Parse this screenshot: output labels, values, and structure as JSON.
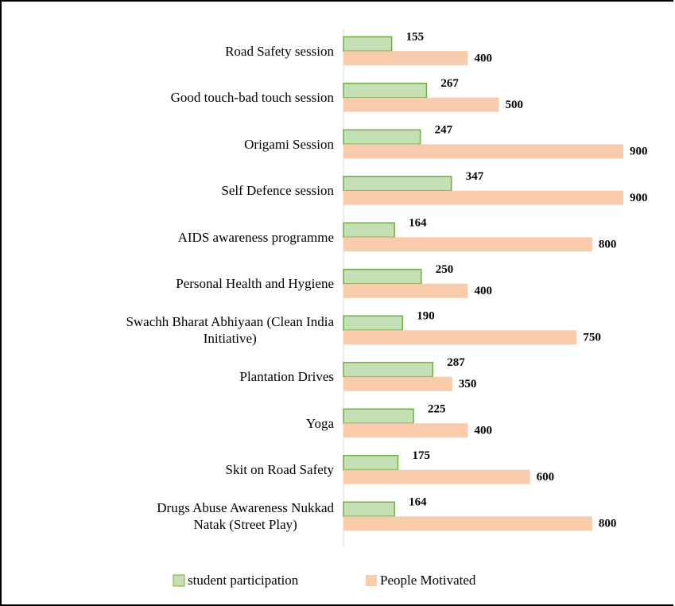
{
  "chart_data": {
    "type": "bar",
    "orientation": "horizontal",
    "categories": [
      "Road Safety session",
      "Good touch-bad touch session",
      "Origami Session",
      "Self Defence session",
      "AIDS awareness programme",
      "Personal Health and Hygiene",
      "Swachh Bharat Abhiyaan (Clean India\nInitiative)",
      "Plantation Drives",
      "Yoga",
      "Skit on Road Safety",
      "Drugs Abuse Awareness Nukkad\nNatak (Street Play)"
    ],
    "series": [
      {
        "name": "student participation",
        "color": "#c5e0b4",
        "stroke": "#70ad47",
        "values": [
          155,
          267,
          247,
          347,
          164,
          250,
          190,
          287,
          225,
          175,
          164
        ]
      },
      {
        "name": "People Motivated",
        "color": "#f8cbad",
        "values": [
          400,
          500,
          900,
          900,
          800,
          400,
          750,
          350,
          400,
          600,
          800
        ]
      }
    ],
    "legend": "bottom"
  }
}
